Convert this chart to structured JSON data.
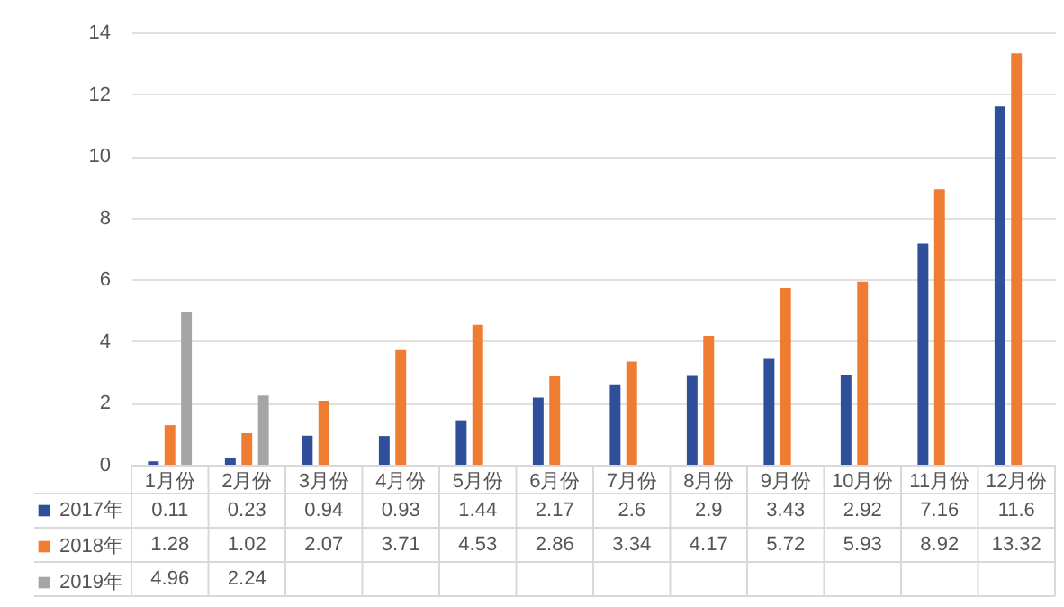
{
  "chart_data": {
    "type": "bar",
    "categories": [
      "1月份",
      "2月份",
      "3月份",
      "4月份",
      "5月份",
      "6月份",
      "7月份",
      "8月份",
      "9月份",
      "10月份",
      "11月份",
      "12月份"
    ],
    "series": [
      {
        "name": "2017年",
        "color": "#2f4f9a",
        "values": [
          0.11,
          0.23,
          0.94,
          0.93,
          1.44,
          2.17,
          2.6,
          2.9,
          3.43,
          2.92,
          7.16,
          11.6
        ]
      },
      {
        "name": "2018年",
        "color": "#ee7d31",
        "values": [
          1.28,
          1.02,
          2.07,
          3.71,
          4.53,
          2.86,
          3.34,
          4.17,
          5.72,
          5.93,
          8.92,
          13.32
        ]
      },
      {
        "name": "2019年",
        "color": "#a5a5a5",
        "values": [
          4.96,
          2.24,
          null,
          null,
          null,
          null,
          null,
          null,
          null,
          null,
          null,
          null
        ]
      }
    ],
    "ylim": [
      0,
      14
    ],
    "yticks": [
      0,
      2,
      4,
      6,
      8,
      10,
      12,
      14
    ],
    "grid": "y",
    "legend": "bottom left",
    "data_labels": true
  }
}
